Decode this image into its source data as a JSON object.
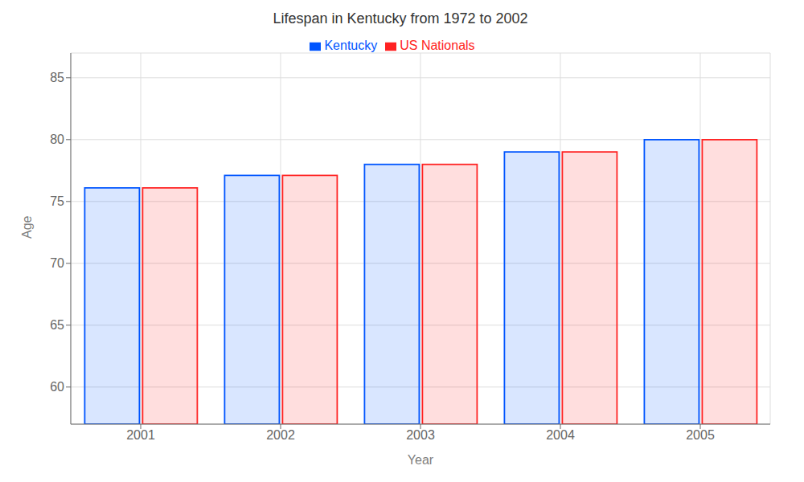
{
  "chart_data": {
    "type": "bar",
    "title": "Lifespan in Kentucky from 1972 to 2002",
    "xlabel": "Year",
    "ylabel": "Age",
    "categories": [
      "2001",
      "2002",
      "2003",
      "2004",
      "2005"
    ],
    "series": [
      {
        "name": "Kentucky",
        "color": "#0055ff",
        "values": [
          76.1,
          77.1,
          78.0,
          79.0,
          80.0
        ]
      },
      {
        "name": "US Nationals",
        "color": "#ff2222",
        "values": [
          76.1,
          77.1,
          78.0,
          79.0,
          80.0
        ]
      }
    ],
    "ylim": [
      57,
      87
    ],
    "yticks": [
      60,
      65,
      70,
      75,
      80,
      85
    ],
    "grid": true,
    "legend": "top"
  }
}
